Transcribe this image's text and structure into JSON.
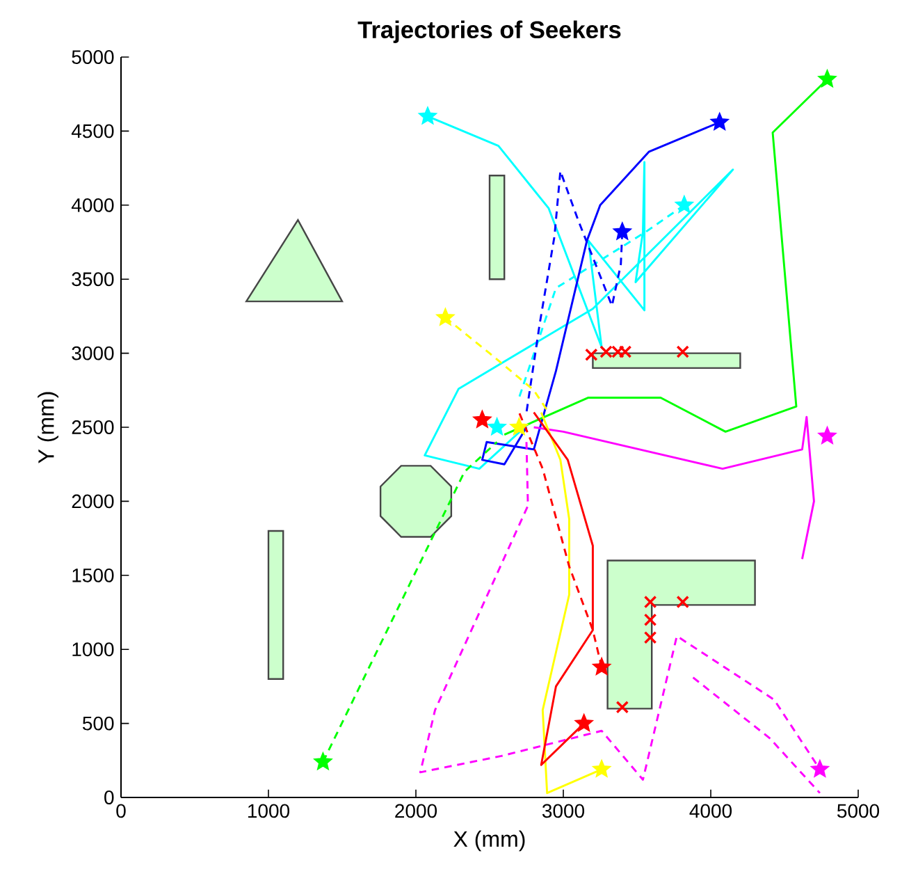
{
  "chart_data": {
    "type": "line",
    "title": "Trajectories of Seekers",
    "xlabel": "X (mm)",
    "ylabel": "Y (mm)",
    "xlim": [
      0,
      5000
    ],
    "ylim": [
      0,
      5000
    ],
    "xticks": [
      0,
      1000,
      2000,
      3000,
      4000,
      5000
    ],
    "yticks": [
      0,
      500,
      1000,
      1500,
      2000,
      2500,
      3000,
      3500,
      4000,
      4500,
      5000
    ],
    "marker": "none",
    "line_style": "solid",
    "series": [
      {
        "type": "area",
        "color": "#ccffcc",
        "x": [
          850,
          1500,
          1200
        ],
        "values": [
          3350,
          3350,
          3900
        ]
      },
      {
        "type": "area",
        "color": "#ccffcc",
        "x": [
          2500,
          2600,
          2600,
          2500
        ],
        "values": [
          3500,
          3500,
          4200,
          4200
        ]
      },
      {
        "type": "area",
        "color": "#ccffcc",
        "x": [
          1000,
          1100,
          1100,
          1000
        ],
        "values": [
          800,
          800,
          1800,
          1800
        ]
      },
      {
        "type": "area",
        "color": "#ccffcc",
        "x": [
          2240,
          2100,
          1900,
          1760,
          1760,
          1900,
          2100,
          2240
        ],
        "values": [
          2100,
          2240,
          2240,
          2100,
          1900,
          1760,
          1760,
          1900
        ]
      },
      {
        "type": "area",
        "color": "#ccffcc",
        "x": [
          3200,
          4200,
          4200,
          3200
        ],
        "values": [
          2900,
          2900,
          3000,
          3000
        ]
      },
      {
        "type": "area",
        "color": "#ccffcc",
        "x": [
          3300,
          3600,
          3600,
          4300,
          4300,
          3300
        ],
        "values": [
          600,
          600,
          1300,
          1300,
          1600,
          1600
        ]
      },
      {
        "color": "#00ffff",
        "x": [
          2080,
          2560,
          2900,
          3260,
          3170,
          3550,
          3550,
          3540,
          3490,
          4150,
          3200,
          2290,
          2060,
          2430,
          2760
        ],
        "values": [
          4600,
          4400,
          3980,
          3040,
          3760,
          3290,
          4290,
          3820,
          3480,
          4240,
          3300,
          2760,
          2310,
          2220,
          2520
        ]
      },
      {
        "color": "#00ffff",
        "line_style": "dashed",
        "x": [
          3820,
          3560,
          2950,
          2700
        ],
        "values": [
          4000,
          3820,
          3440,
          2700
        ]
      },
      {
        "color": "#0000ff",
        "x": [
          4060,
          3580,
          3250,
          3160,
          2950,
          2800,
          2480,
          2450,
          2600,
          2750
        ],
        "values": [
          4560,
          4360,
          4000,
          3760,
          2880,
          2350,
          2400,
          2280,
          2250,
          2500
        ]
      },
      {
        "color": "#0000ff",
        "line_style": "dashed",
        "x": [
          3400,
          3390,
          3330,
          3100,
          2980,
          2940,
          2840,
          2750
        ],
        "values": [
          3820,
          3600,
          3320,
          3900,
          4230,
          3790,
          3200,
          2600
        ]
      },
      {
        "color": "#00ff00",
        "x": [
          4790,
          4420,
          4580,
          4100,
          3660,
          3170,
          2600
        ],
        "values": [
          4850,
          4490,
          2640,
          2470,
          2700,
          2700,
          2450
        ]
      },
      {
        "color": "#00ff00",
        "line_style": "dashed",
        "x": [
          1370,
          2330,
          2550
        ],
        "values": [
          240,
          2200,
          2400
        ]
      },
      {
        "color": "#ff00ff",
        "x": [
          2800,
          3000,
          4080,
          4620,
          4650,
          4700,
          4620
        ],
        "values": [
          2500,
          2470,
          2220,
          2350,
          2570,
          2000,
          1610
        ]
      },
      {
        "color": "#ff00ff",
        "line_style": "dashed",
        "x": [
          2750,
          2760,
          2130,
          2030,
          2580,
          3260,
          3540,
          3770,
          4430,
          4740
        ],
        "values": [
          2400,
          1970,
          590,
          170,
          280,
          450,
          120,
          1090,
          660,
          190
        ]
      },
      {
        "color": "#ff00ff",
        "line_style": "dashed",
        "x": [
          3880,
          4400,
          4740
        ],
        "values": [
          810,
          400,
          30
        ]
      },
      {
        "color": "#ffff00",
        "x": [
          3260,
          2890,
          2860,
          3040,
          3040,
          2980,
          2850
        ],
        "values": [
          190,
          30,
          590,
          1370,
          1880,
          2280,
          2600
        ]
      },
      {
        "color": "#ffff00",
        "line_style": "dashed",
        "x": [
          2200,
          2500,
          2800,
          2900
        ],
        "values": [
          3240,
          3000,
          2750,
          2600
        ]
      },
      {
        "color": "#ff0000",
        "x": [
          3140,
          2850,
          2950,
          3200,
          3200,
          3030,
          2800
        ],
        "values": [
          500,
          220,
          750,
          1130,
          1700,
          2280,
          2600
        ]
      },
      {
        "color": "#ff0000",
        "line_style": "dashed",
        "x": [
          3260,
          3200,
          3040,
          2860,
          2700
        ],
        "values": [
          880,
          1130,
          1560,
          2220,
          2600
        ]
      },
      {
        "type": "scatter",
        "marker": "star",
        "color": "#00ffff",
        "x": [
          2080,
          3820,
          2550
        ],
        "values": [
          4600,
          4000,
          2500
        ]
      },
      {
        "type": "scatter",
        "marker": "star",
        "color": "#0000ff",
        "x": [
          4060,
          3400
        ],
        "values": [
          4560,
          3820
        ]
      },
      {
        "type": "scatter",
        "marker": "star",
        "color": "#00ff00",
        "x": [
          4790,
          1370
        ],
        "values": [
          4850,
          240
        ]
      },
      {
        "type": "scatter",
        "marker": "star",
        "color": "#ff00ff",
        "x": [
          4790,
          4740
        ],
        "values": [
          2440,
          190
        ]
      },
      {
        "type": "scatter",
        "marker": "star",
        "color": "#ffff00",
        "x": [
          3260,
          2200,
          2700
        ],
        "values": [
          190,
          3240,
          2500
        ]
      },
      {
        "type": "scatter",
        "marker": "star",
        "color": "#ff0000",
        "x": [
          3260,
          3140,
          2450
        ],
        "values": [
          880,
          500,
          2550
        ]
      },
      {
        "type": "scatter",
        "marker": "cross",
        "color": "#ff0000",
        "x": [
          3190,
          3290,
          3370,
          3420,
          3810,
          3590,
          3590,
          3590,
          3810,
          3400
        ],
        "values": [
          2990,
          3010,
          3010,
          3010,
          3010,
          1320,
          1200,
          1080,
          1320,
          610
        ]
      }
    ]
  }
}
